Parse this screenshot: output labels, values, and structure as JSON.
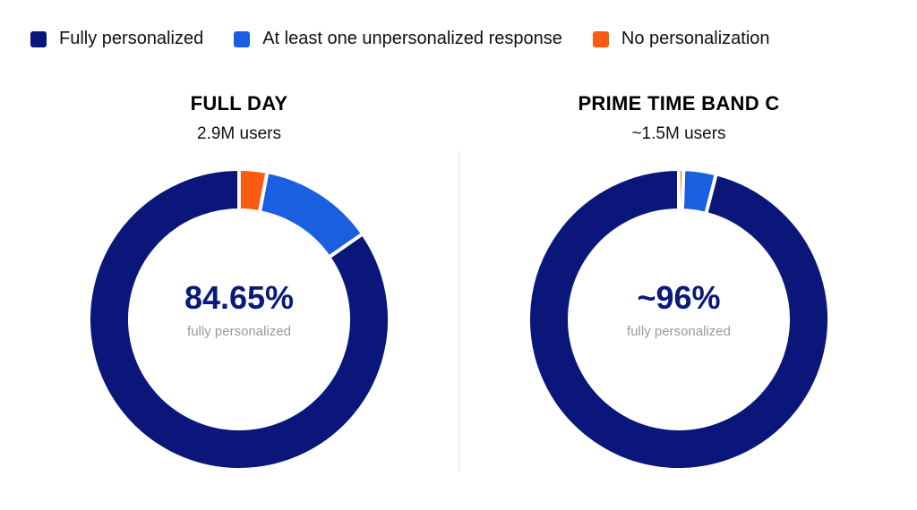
{
  "colors": {
    "fully": "#0a167a",
    "partial": "#1a5fe0",
    "none": "#fc5a12"
  },
  "legend": [
    {
      "label": "Fully personalized",
      "color": "#0a167a"
    },
    {
      "label": "At least one unpersonalized response",
      "color": "#1a5fe0"
    },
    {
      "label": "No personalization",
      "color": "#fc5a12"
    }
  ],
  "chart_data": [
    {
      "type": "pie",
      "title": "FULL DAY",
      "subtitle": "2.9M users",
      "center_value": "84.65%",
      "center_label": "fully personalized",
      "slices": [
        {
          "name": "Fully personalized",
          "value": 84.65
        },
        {
          "name": "At least one unpersonalized response",
          "value": 12.35
        },
        {
          "name": "No personalization",
          "value": 3.0
        }
      ]
    },
    {
      "type": "pie",
      "title": "PRIME TIME BAND C",
      "subtitle": "~1.5M users",
      "center_value": "~96%",
      "center_label": "fully personalized",
      "slices": [
        {
          "name": "Fully personalized",
          "value": 96.0
        },
        {
          "name": "At least one unpersonalized response",
          "value": 3.5
        },
        {
          "name": "No personalization",
          "value": 0.5
        }
      ]
    }
  ]
}
